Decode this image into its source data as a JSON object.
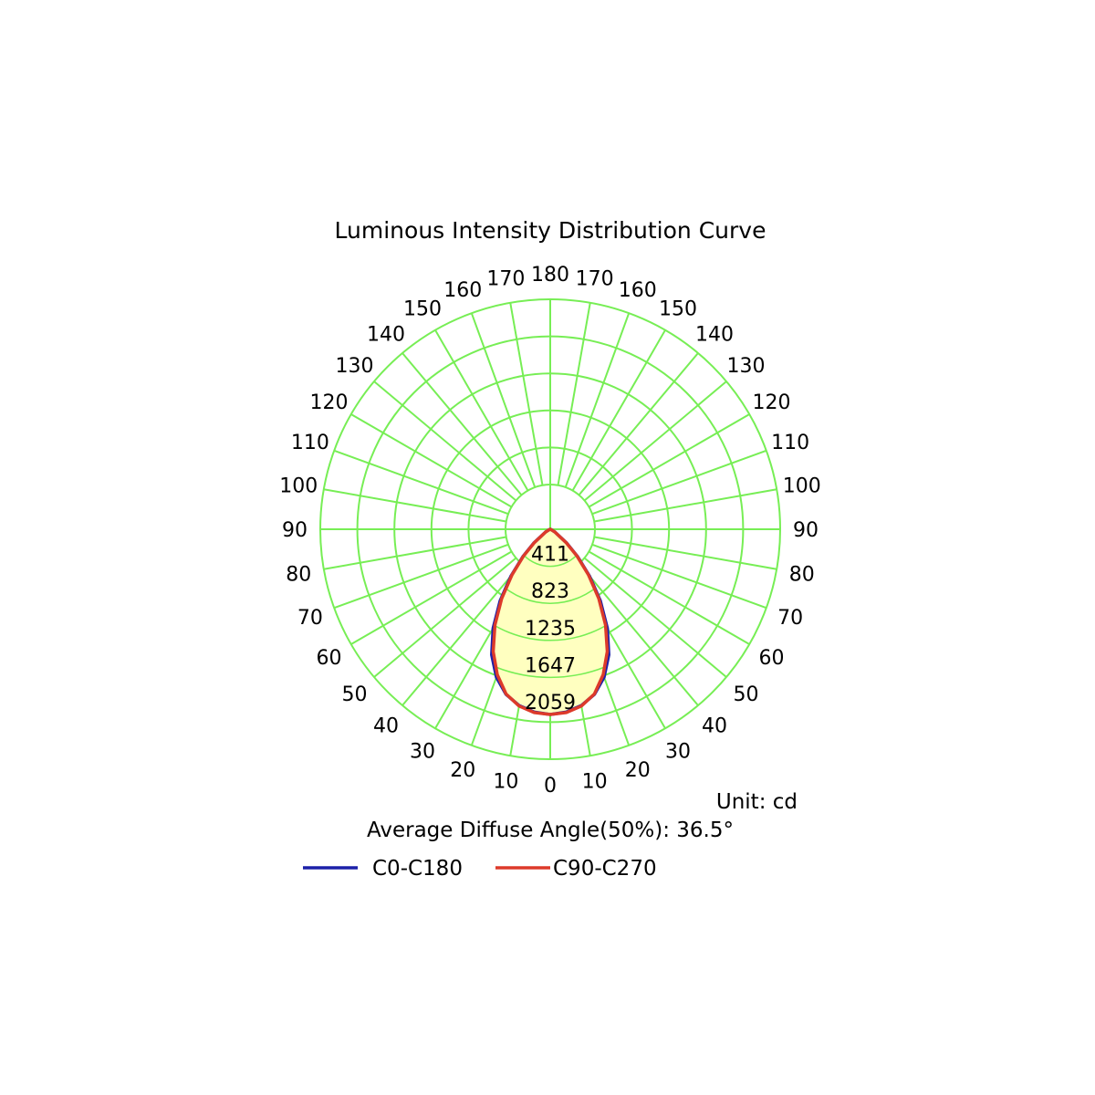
{
  "chart_data": {
    "type": "polar",
    "title": "Luminous Intensity Distribution Curve",
    "unit_label": "Unit: cd",
    "diffuse_angle_label": "Average Diffuse Angle(50%): 36.5°",
    "radial_ticks": [
      "411",
      "823",
      "1235",
      "1647",
      "2059"
    ],
    "radial_max": 2059,
    "left_angle_labels": [
      "0",
      "10",
      "20",
      "30",
      "40",
      "50",
      "60",
      "70",
      "80",
      "90",
      "100",
      "110",
      "120",
      "130",
      "140",
      "150",
      "160",
      "170",
      "180"
    ],
    "right_angle_labels": [
      "10",
      "20",
      "30",
      "40",
      "50",
      "60",
      "70",
      "80",
      "90",
      "100",
      "110",
      "120",
      "130",
      "140",
      "150",
      "160",
      "170"
    ],
    "grid": true,
    "grid_color": "#77ee55",
    "fill_color": "#ffffc0",
    "legend_position": "bottom",
    "series": [
      {
        "name": "C0-C180",
        "color": "#1c20a8",
        "angles": [
          0,
          5,
          10,
          15,
          20,
          25,
          30,
          35,
          40,
          45,
          50,
          60,
          70,
          80,
          90
        ],
        "values": [
          2059,
          2040,
          1990,
          1900,
          1750,
          1540,
          1270,
          970,
          680,
          430,
          240,
          60,
          10,
          2,
          0
        ]
      },
      {
        "name": "C90-C270",
        "color": "#dd3a2a",
        "angles": [
          0,
          5,
          10,
          15,
          20,
          25,
          30,
          35,
          40,
          45,
          50,
          60,
          70,
          80,
          90
        ],
        "values": [
          2059,
          2045,
          1995,
          1895,
          1720,
          1500,
          1230,
          940,
          660,
          420,
          230,
          55,
          8,
          2,
          0
        ]
      }
    ]
  }
}
